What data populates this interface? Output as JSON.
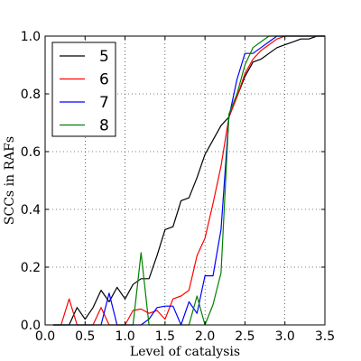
{
  "chart_data": {
    "type": "line",
    "xlabel": "Level of catalysis",
    "ylabel": "SCCs in RAFs",
    "xlim": [
      0.0,
      3.5
    ],
    "ylim": [
      0.0,
      1.0
    ],
    "xticks": [
      "0.0",
      "0.5",
      "1.0",
      "1.5",
      "2.0",
      "2.5",
      "3.0",
      "3.5"
    ],
    "yticks": [
      "0.0",
      "0.2",
      "0.4",
      "0.6",
      "0.8",
      "1.0"
    ],
    "grid": true,
    "grid_style": "dotted",
    "legend_position": "top-left",
    "series": [
      {
        "name": "5",
        "color": "#000000",
        "x": [
          0.1,
          0.2,
          0.3,
          0.4,
          0.5,
          0.6,
          0.7,
          0.8,
          0.9,
          1.0,
          1.1,
          1.2,
          1.3,
          1.4,
          1.5,
          1.6,
          1.7,
          1.8,
          1.9,
          2.0,
          2.1,
          2.2,
          2.3,
          2.4,
          2.5,
          2.6,
          2.7,
          2.8,
          2.9,
          3.0,
          3.1,
          3.2,
          3.3,
          3.4,
          3.5
        ],
        "y": [
          0.0,
          0.0,
          0.0,
          0.06,
          0.02,
          0.06,
          0.12,
          0.08,
          0.13,
          0.09,
          0.14,
          0.16,
          0.16,
          0.24,
          0.33,
          0.34,
          0.43,
          0.44,
          0.51,
          0.59,
          0.64,
          0.69,
          0.72,
          0.79,
          0.86,
          0.91,
          0.92,
          0.94,
          0.96,
          0.97,
          0.98,
          0.99,
          0.99,
          1.0,
          1.0
        ]
      },
      {
        "name": "6",
        "color": "#ff0000",
        "x": [
          0.1,
          0.2,
          0.3,
          0.4,
          0.5,
          0.6,
          0.7,
          0.8,
          0.9,
          1.0,
          1.1,
          1.2,
          1.3,
          1.4,
          1.5,
          1.6,
          1.7,
          1.8,
          1.9,
          2.0,
          2.1,
          2.2,
          2.3,
          2.4,
          2.5,
          2.6,
          2.7,
          2.8,
          2.9,
          3.0,
          3.1,
          3.2,
          3.3,
          3.4,
          3.5
        ],
        "y": [
          0.0,
          0.0,
          0.09,
          0.0,
          0.0,
          0.0,
          0.06,
          0.0,
          0.0,
          0.0,
          0.05,
          0.055,
          0.04,
          0.05,
          0.02,
          0.09,
          0.1,
          0.12,
          0.24,
          0.3,
          0.42,
          0.55,
          0.72,
          0.79,
          0.87,
          0.92,
          0.95,
          0.97,
          0.99,
          1.0,
          1.0,
          1.0,
          1.0,
          1.0,
          1.0
        ]
      },
      {
        "name": "7",
        "color": "#0000ff",
        "x": [
          0.1,
          0.2,
          0.3,
          0.4,
          0.5,
          0.6,
          0.7,
          0.8,
          0.9,
          1.0,
          1.1,
          1.2,
          1.3,
          1.4,
          1.5,
          1.6,
          1.7,
          1.8,
          1.9,
          2.0,
          2.1,
          2.2,
          2.3,
          2.4,
          2.5,
          2.6,
          2.7,
          2.8,
          2.9,
          3.0,
          3.1,
          3.2,
          3.3,
          3.4,
          3.5
        ],
        "y": [
          0.0,
          0.0,
          0.0,
          0.0,
          0.0,
          0.0,
          0.0,
          0.11,
          0.0,
          0.0,
          0.0,
          0.0,
          0.02,
          0.06,
          0.065,
          0.065,
          0.0,
          0.08,
          0.04,
          0.17,
          0.17,
          0.33,
          0.72,
          0.85,
          0.94,
          0.94,
          0.96,
          0.98,
          1.0,
          1.0,
          1.0,
          1.0,
          1.0,
          1.0,
          1.0
        ]
      },
      {
        "name": "8",
        "color": "#008000",
        "x": [
          0.1,
          0.2,
          0.3,
          0.4,
          0.5,
          0.6,
          0.7,
          0.8,
          0.9,
          1.0,
          1.1,
          1.2,
          1.3,
          1.4,
          1.5,
          1.6,
          1.7,
          1.8,
          1.9,
          2.0,
          2.1,
          2.2,
          2.3,
          2.4,
          2.5,
          2.6,
          2.7,
          2.8,
          2.9,
          3.0,
          3.1,
          3.2,
          3.3,
          3.4,
          3.5
        ],
        "y": [
          0.0,
          0.0,
          0.0,
          0.0,
          0.0,
          0.0,
          0.0,
          0.0,
          0.0,
          0.0,
          0.0,
          0.25,
          0.0,
          0.0,
          0.0,
          0.0,
          0.0,
          0.0,
          0.1,
          0.0,
          0.07,
          0.18,
          0.73,
          0.8,
          0.9,
          0.96,
          0.98,
          1.0,
          1.0,
          1.0,
          1.0,
          1.0,
          1.0,
          1.0,
          1.0
        ]
      }
    ]
  }
}
